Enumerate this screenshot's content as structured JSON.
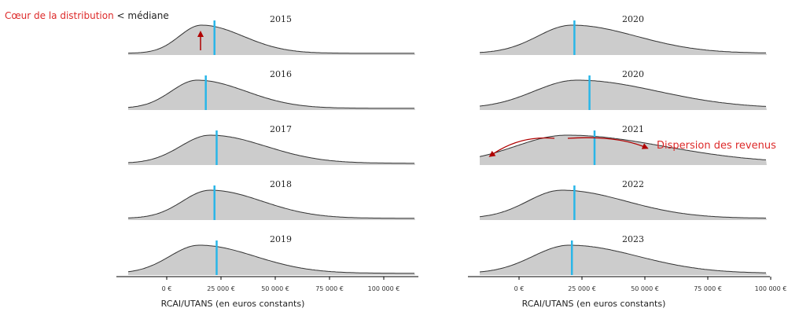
{
  "chart_data": [
    {
      "type": "area",
      "xlabel": "RCAI/UTANS (en euros constants)",
      "xlim": [
        -28000,
        100000
      ],
      "x_ticks": [
        0,
        25000,
        50000,
        75000,
        100000
      ],
      "x_tick_labels": [
        "0 €",
        "25 000 €",
        "50 000 €",
        "75 000 €",
        "100 000 €"
      ],
      "panels": [
        {
          "label": "2015",
          "mode": 16000,
          "spread": 12000,
          "median": 22000
        },
        {
          "label": "2016",
          "mode": 14000,
          "spread": 14000,
          "median": 18000
        },
        {
          "label": "2017",
          "mode": 20000,
          "spread": 16000,
          "median": 23000
        },
        {
          "label": "2018",
          "mode": 20000,
          "spread": 15000,
          "median": 22000
        },
        {
          "label": "2019",
          "mode": 15000,
          "spread": 16000,
          "median": 23000
        }
      ]
    },
    {
      "type": "area",
      "xlabel": "RCAI/UTANS (en euros constants)",
      "xlim": [
        -28000,
        100000
      ],
      "x_ticks": [
        0,
        25000,
        50000,
        75000,
        100000
      ],
      "x_tick_labels": [
        "0 €",
        "25 000 €",
        "50 000 €",
        "75 000 €",
        "100 000 €"
      ],
      "panels": [
        {
          "label": "2020",
          "mode": 21000,
          "spread": 16000,
          "median": 22000
        },
        {
          "label": "2020",
          "mode": 23000,
          "spread": 20000,
          "median": 28000
        },
        {
          "label": "2021",
          "mode": 19000,
          "spread": 24000,
          "median": 30000
        },
        {
          "label": "2022",
          "mode": 17000,
          "spread": 16000,
          "median": 22000
        },
        {
          "label": "2023",
          "mode": 20000,
          "spread": 17000,
          "median": 21000
        }
      ]
    }
  ],
  "annotations": {
    "heart_red": "Cœur de la distribution",
    "heart_black": " < médiane",
    "dispersion": "Dispersion des revenus"
  },
  "colors": {
    "fill": "#cccccc",
    "curve": "#333333",
    "median_line": "#29b6e8",
    "annotation": "#dd2a2a"
  }
}
